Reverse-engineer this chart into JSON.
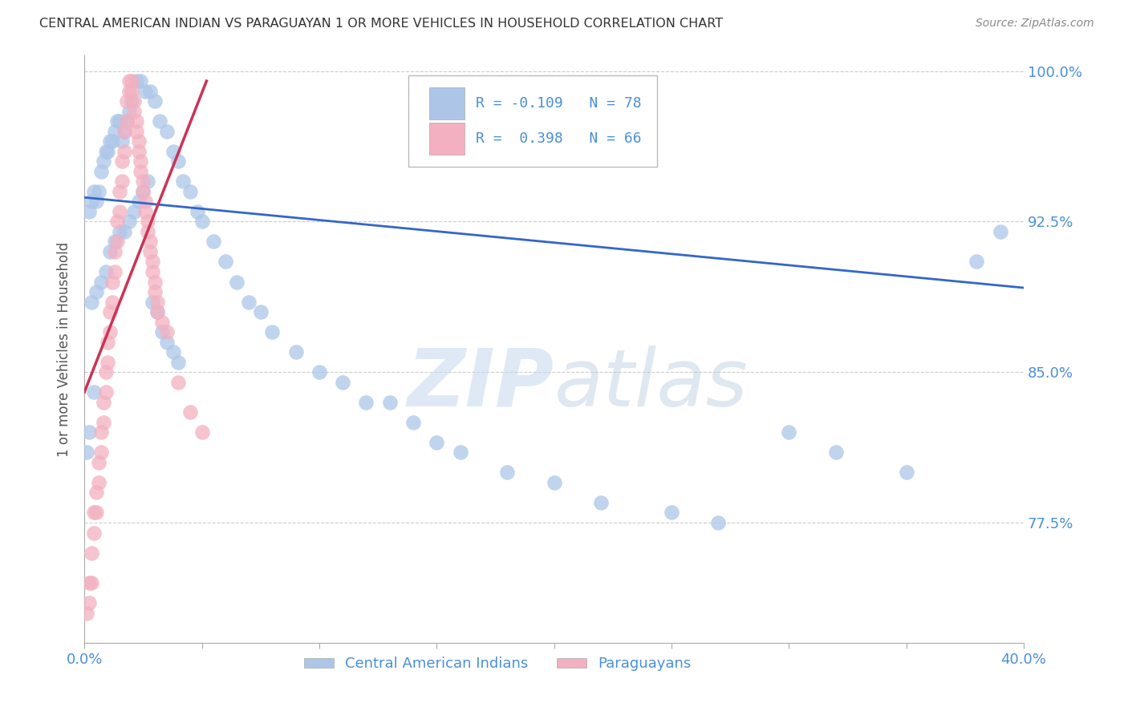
{
  "title": "CENTRAL AMERICAN INDIAN VS PARAGUAYAN 1 OR MORE VEHICLES IN HOUSEHOLD CORRELATION CHART",
  "source": "Source: ZipAtlas.com",
  "ylabel": "1 or more Vehicles in Household",
  "x_min": 0.0,
  "x_max": 0.4,
  "y_min": 0.715,
  "y_max": 1.008,
  "x_tick_positions": [
    0.0,
    0.05,
    0.1,
    0.15,
    0.2,
    0.25,
    0.3,
    0.35,
    0.4
  ],
  "x_tick_labels": [
    "0.0%",
    "",
    "",
    "",
    "",
    "",
    "",
    "",
    "40.0%"
  ],
  "y_tick_positions": [
    0.775,
    0.85,
    0.925,
    1.0
  ],
  "y_tick_labels": [
    "77.5%",
    "85.0%",
    "92.5%",
    "100.0%"
  ],
  "legend_blue_r": "-0.109",
  "legend_blue_n": "78",
  "legend_pink_r": "0.398",
  "legend_pink_n": "66",
  "legend_label_blue": "Central American Indians",
  "legend_label_pink": "Paraguayans",
  "blue_color": "#adc6e8",
  "pink_color": "#f2b0c0",
  "blue_line_color": "#3366cc",
  "pink_line_color": "#cc3355",
  "axis_label_color": "#4a90d9",
  "title_color": "#333333",
  "source_color": "#888888",
  "grid_color": "#cccccc",
  "background_color": "#ffffff",
  "watermark_color": "#dce8f5",
  "blue_x": [
    0.001,
    0.002,
    0.002,
    0.003,
    0.004,
    0.004,
    0.005,
    0.006,
    0.007,
    0.008,
    0.009,
    0.01,
    0.011,
    0.012,
    0.013,
    0.014,
    0.015,
    0.016,
    0.017,
    0.018,
    0.019,
    0.02,
    0.022,
    0.024,
    0.026,
    0.028,
    0.03,
    0.032,
    0.035,
    0.038,
    0.04,
    0.042,
    0.045,
    0.048,
    0.05,
    0.055,
    0.06,
    0.065,
    0.07,
    0.075,
    0.08,
    0.09,
    0.1,
    0.11,
    0.12,
    0.13,
    0.14,
    0.15,
    0.16,
    0.18,
    0.2,
    0.22,
    0.25,
    0.27,
    0.3,
    0.32,
    0.35,
    0.003,
    0.005,
    0.007,
    0.009,
    0.011,
    0.013,
    0.015,
    0.017,
    0.019,
    0.021,
    0.023,
    0.025,
    0.027,
    0.029,
    0.031,
    0.033,
    0.035,
    0.038,
    0.04,
    0.38,
    0.39
  ],
  "blue_y": [
    0.81,
    0.82,
    0.93,
    0.935,
    0.84,
    0.94,
    0.935,
    0.94,
    0.95,
    0.955,
    0.96,
    0.96,
    0.965,
    0.965,
    0.97,
    0.975,
    0.975,
    0.965,
    0.97,
    0.975,
    0.98,
    0.985,
    0.995,
    0.995,
    0.99,
    0.99,
    0.985,
    0.975,
    0.97,
    0.96,
    0.955,
    0.945,
    0.94,
    0.93,
    0.925,
    0.915,
    0.905,
    0.895,
    0.885,
    0.88,
    0.87,
    0.86,
    0.85,
    0.845,
    0.835,
    0.835,
    0.825,
    0.815,
    0.81,
    0.8,
    0.795,
    0.785,
    0.78,
    0.775,
    0.82,
    0.81,
    0.8,
    0.885,
    0.89,
    0.895,
    0.9,
    0.91,
    0.915,
    0.92,
    0.92,
    0.925,
    0.93,
    0.935,
    0.94,
    0.945,
    0.885,
    0.88,
    0.87,
    0.865,
    0.86,
    0.855,
    0.905,
    0.92
  ],
  "pink_x": [
    0.001,
    0.002,
    0.002,
    0.003,
    0.003,
    0.004,
    0.004,
    0.005,
    0.005,
    0.006,
    0.006,
    0.007,
    0.007,
    0.008,
    0.008,
    0.009,
    0.009,
    0.01,
    0.01,
    0.011,
    0.011,
    0.012,
    0.012,
    0.013,
    0.013,
    0.014,
    0.014,
    0.015,
    0.015,
    0.016,
    0.016,
    0.017,
    0.017,
    0.018,
    0.018,
    0.019,
    0.019,
    0.02,
    0.02,
    0.021,
    0.021,
    0.022,
    0.022,
    0.023,
    0.023,
    0.024,
    0.024,
    0.025,
    0.025,
    0.026,
    0.026,
    0.027,
    0.027,
    0.028,
    0.028,
    0.029,
    0.029,
    0.03,
    0.03,
    0.031,
    0.031,
    0.033,
    0.035,
    0.04,
    0.045,
    0.05
  ],
  "pink_y": [
    0.73,
    0.735,
    0.745,
    0.745,
    0.76,
    0.77,
    0.78,
    0.78,
    0.79,
    0.795,
    0.805,
    0.81,
    0.82,
    0.825,
    0.835,
    0.84,
    0.85,
    0.855,
    0.865,
    0.87,
    0.88,
    0.885,
    0.895,
    0.9,
    0.91,
    0.915,
    0.925,
    0.93,
    0.94,
    0.945,
    0.955,
    0.96,
    0.97,
    0.975,
    0.985,
    0.99,
    0.995,
    0.995,
    0.99,
    0.985,
    0.98,
    0.975,
    0.97,
    0.965,
    0.96,
    0.955,
    0.95,
    0.945,
    0.94,
    0.935,
    0.93,
    0.925,
    0.92,
    0.915,
    0.91,
    0.905,
    0.9,
    0.895,
    0.89,
    0.885,
    0.88,
    0.875,
    0.87,
    0.845,
    0.83,
    0.82
  ]
}
